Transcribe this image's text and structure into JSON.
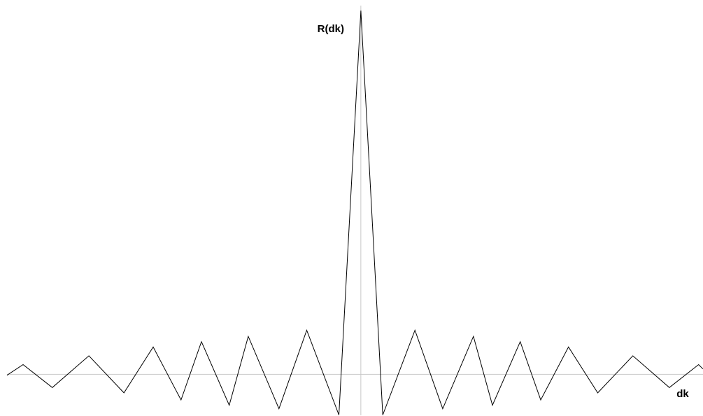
{
  "chart_data": {
    "type": "line",
    "xlabel": "dk",
    "ylabel": "R(dk)",
    "xlim": [
      -12.1,
      11.7
    ],
    "ylim": [
      -2.36,
      21.2
    ],
    "grid": false,
    "legend": "none",
    "colors": {
      "line": "#000000",
      "axes": "#c8c8c8"
    },
    "series": [
      {
        "x": [
          -12.1,
          -11.55,
          -10.55,
          -9.3,
          -8.1,
          -7.1,
          -6.15,
          -5.45,
          -4.5,
          -3.85,
          -2.8,
          -1.85,
          -0.75,
          0,
          0.75,
          1.85,
          2.8,
          3.85,
          4.5,
          5.45,
          6.15,
          7.1,
          8.1,
          9.3,
          10.55,
          11.55,
          11.7
        ],
        "y": [
          -0.05,
          0.55,
          -0.75,
          1.05,
          -1.05,
          1.55,
          -1.45,
          1.85,
          -1.75,
          2.15,
          -1.95,
          2.5,
          -2.3,
          20.6,
          -2.3,
          2.5,
          -1.95,
          2.15,
          -1.75,
          1.85,
          -1.45,
          1.55,
          -1.05,
          1.05,
          -0.75,
          0.55,
          0.3
        ]
      }
    ]
  }
}
